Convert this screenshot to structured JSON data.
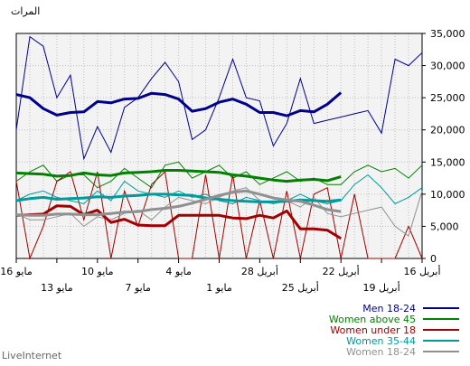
{
  "chart_data": {
    "type": "line",
    "unit_label": "المرات",
    "watermark": "LiveInternet",
    "x_order": "right-to-left",
    "x_tick_labels_upper": [
      "16 مايو",
      "10 مايو",
      "4 مايو",
      "28 أبريل",
      "22 أبريل",
      "16 أبريل"
    ],
    "x_tick_labels_lower": [
      "13 مايو",
      "7 مايو",
      "1 مايو",
      "25 أبريل",
      "19 أبريل"
    ],
    "yticks": [
      0,
      5000,
      10000,
      15000,
      20000,
      25000,
      30000,
      35000
    ],
    "ytick_labels": [
      "0",
      "5,000",
      "10,000",
      "15,000",
      "20,000",
      "25,000",
      "30,000",
      "35,000"
    ],
    "ylim": [
      0,
      35000
    ],
    "grid": true,
    "legend_position": "bottom-right",
    "series": [
      {
        "name": "Men 18-24",
        "color": "#00008b",
        "daily": [
          20000,
          34500,
          33000,
          25000,
          28500,
          15500,
          20500,
          16500,
          23500,
          25000,
          28000,
          30500,
          27500,
          18500,
          20000,
          25000,
          31000,
          25000,
          24500,
          17500,
          21000,
          28000,
          21000,
          21500,
          22000,
          22500,
          23000,
          19500,
          31000,
          30000,
          32000
        ],
        "avg": [
          25500,
          25000,
          23300,
          22300,
          22700,
          22800,
          24400,
          24200,
          24800,
          24900,
          25700,
          25500,
          24800,
          22900,
          23300,
          24300,
          24800,
          24000,
          22700,
          22700,
          22200,
          23000,
          22800,
          24000,
          25800
        ]
      },
      {
        "name": "Women above 45",
        "color": "#008000",
        "daily": [
          12000,
          13500,
          14500,
          12000,
          13000,
          13000,
          11000,
          12000,
          14000,
          12500,
          11000,
          14500,
          15000,
          12500,
          13500,
          14500,
          12500,
          13500,
          11500,
          12500,
          13500,
          12000,
          12500,
          11500,
          11500,
          13500,
          14500,
          13500,
          14000,
          12500,
          14500
        ],
        "avg": [
          13300,
          13200,
          13100,
          12800,
          12900,
          13300,
          13000,
          12900,
          13300,
          13400,
          13500,
          13700,
          13700,
          13600,
          13500,
          13400,
          13000,
          12800,
          12500,
          12200,
          12000,
          12200,
          12300,
          12100,
          12700
        ]
      },
      {
        "name": "Women under 18",
        "color": "#a00000",
        "daily": [
          12000,
          0,
          5000,
          12000,
          13500,
          6000,
          13500,
          0,
          10500,
          5000,
          11500,
          13500,
          0,
          0,
          13000,
          0,
          13000,
          0,
          9000,
          0,
          10500,
          0,
          10000,
          11000,
          0,
          10000,
          0,
          0,
          0,
          5000,
          0
        ],
        "avg": [
          6700,
          6800,
          6900,
          8200,
          8100,
          6800,
          7500,
          5600,
          6100,
          5200,
          5100,
          5100,
          6700,
          6700,
          6700,
          6700,
          6300,
          6200,
          6700,
          6300,
          7400,
          4600,
          4600,
          4400,
          3100
        ]
      },
      {
        "name": "Women 35-44",
        "color": "#009a9a",
        "daily": [
          9000,
          10000,
          10500,
          9500,
          9000,
          8500,
          10500,
          9000,
          12000,
          10500,
          10000,
          9500,
          10500,
          9500,
          10000,
          9000,
          8500,
          9500,
          9000,
          8500,
          9000,
          10000,
          9000,
          8500,
          9000,
          11500,
          13000,
          11000,
          8500,
          9500,
          11000
        ],
        "avg": [
          9000,
          9300,
          9500,
          9200,
          9300,
          9400,
          9600,
          9500,
          9700,
          9800,
          10000,
          10000,
          9900,
          9800,
          9400,
          9200,
          9000,
          8900,
          8800,
          8800,
          8900,
          9100,
          9000,
          8900,
          9100
        ]
      },
      {
        "name": "Women 18-24",
        "color": "#909090",
        "daily": [
          7000,
          6000,
          6000,
          6500,
          7000,
          5000,
          6500,
          6000,
          7000,
          7500,
          6000,
          8000,
          9500,
          9000,
          8500,
          9500,
          10500,
          11000,
          9000,
          8500,
          9000,
          8000,
          9500,
          7000,
          6500,
          7000,
          7500,
          8000,
          5000,
          3500,
          10500
        ],
        "avg": [
          6800,
          6700,
          6700,
          6900,
          6900,
          6800,
          6800,
          7000,
          7200,
          7300,
          7600,
          7800,
          8100,
          8600,
          9200,
          9800,
          10300,
          10500,
          10000,
          9400,
          9100,
          8900,
          8300,
          7600,
          7300
        ]
      }
    ]
  }
}
